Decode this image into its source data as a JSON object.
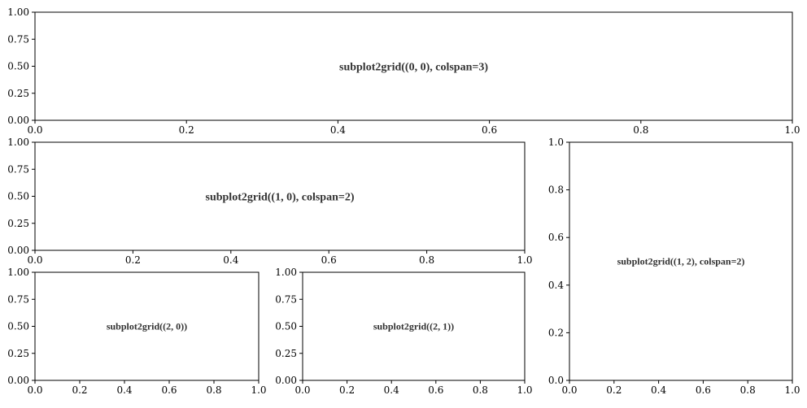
{
  "chart_data": [
    {
      "type": "scatter",
      "title": "",
      "text": "subplot2grid((0, 0), colspan=3)",
      "xlim": [
        0,
        1
      ],
      "ylim": [
        0,
        1
      ],
      "xticks": [
        "0.0",
        "0.2",
        "0.4",
        "0.6",
        "0.8",
        "1.0"
      ],
      "yticks": [
        "0.00",
        "0.25",
        "0.50",
        "0.75",
        "1.00"
      ],
      "series": []
    },
    {
      "type": "scatter",
      "title": "",
      "text": "subplot2grid((1, 0), colspan=2)",
      "xlim": [
        0,
        1
      ],
      "ylim": [
        0,
        1
      ],
      "xticks": [
        "0.0",
        "0.2",
        "0.4",
        "0.6",
        "0.8",
        "1.0"
      ],
      "yticks": [
        "0.00",
        "0.25",
        "0.50",
        "0.75",
        "1.00"
      ],
      "series": []
    },
    {
      "type": "scatter",
      "title": "",
      "text": "subplot2grid((1, 2), colspan=2)",
      "xlim": [
        0,
        1
      ],
      "ylim": [
        0,
        1
      ],
      "xticks": [
        "0.0",
        "0.2",
        "0.4",
        "0.6",
        "0.8",
        "1.0"
      ],
      "yticks": [
        "0.0",
        "0.2",
        "0.4",
        "0.6",
        "0.8",
        "1.0"
      ],
      "series": []
    },
    {
      "type": "scatter",
      "title": "",
      "text": "subplot2grid((2, 0))",
      "xlim": [
        0,
        1
      ],
      "ylim": [
        0,
        1
      ],
      "xticks": [
        "0.0",
        "0.2",
        "0.4",
        "0.6",
        "0.8",
        "1.0"
      ],
      "yticks": [
        "0.00",
        "0.25",
        "0.50",
        "0.75",
        "1.00"
      ],
      "series": []
    },
    {
      "type": "scatter",
      "title": "",
      "text": "subplot2grid((2, 1))",
      "xlim": [
        0,
        1
      ],
      "ylim": [
        0,
        1
      ],
      "xticks": [
        "0.0",
        "0.2",
        "0.4",
        "0.6",
        "0.8",
        "1.0"
      ],
      "yticks": [
        "0.00",
        "0.25",
        "0.50",
        "0.75",
        "1.00"
      ],
      "series": []
    }
  ]
}
